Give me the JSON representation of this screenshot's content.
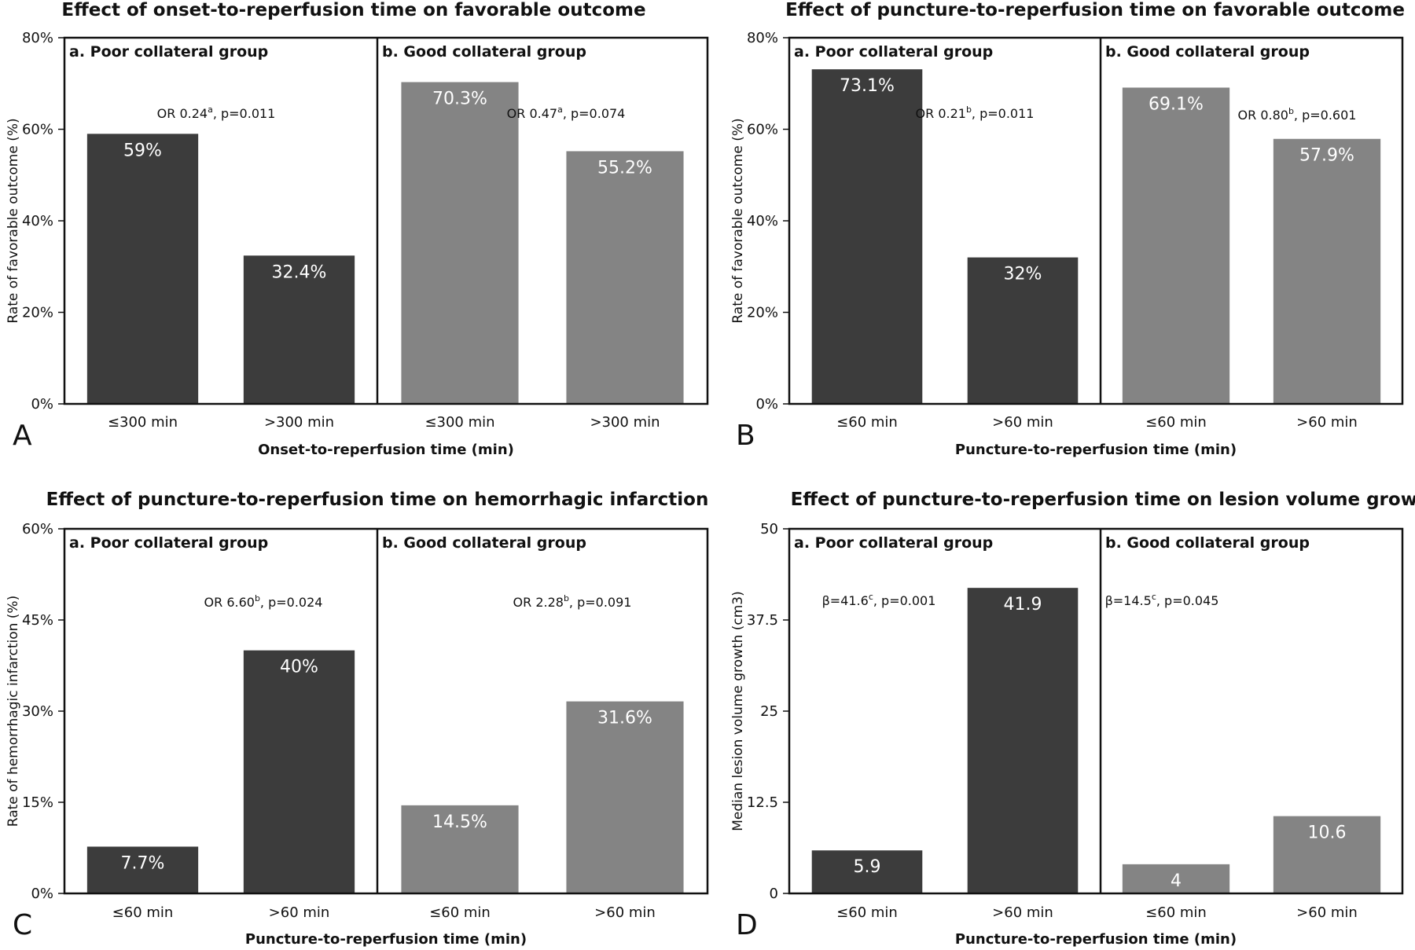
{
  "colors": {
    "poor": "#3c3c3c",
    "good": "#848484",
    "frame": "#111111"
  },
  "chart_data": [
    {
      "type": "bar",
      "panel_letter": "A",
      "title": "Effect of onset-to-reperfusion time on favorable outcome",
      "xlabel": "Onset-to-reperfusion time (min)",
      "ylabel": "Rate of favorable outcome (%)",
      "ylim": [
        0,
        80
      ],
      "yticks": [
        "0%",
        "20%",
        "40%",
        "60%",
        "80%"
      ],
      "groups": [
        {
          "name": "a. Poor collateral group",
          "color_key": "poor",
          "categories": [
            "≤300 min",
            ">300 min"
          ],
          "values": [
            59,
            32.4
          ],
          "labels": [
            "59%",
            "32.4%"
          ],
          "annotation": {
            "main": "OR 0.24",
            "sup": "a",
            "rest": ", p=0.011"
          }
        },
        {
          "name": "b. Good collateral group",
          "color_key": "good",
          "categories": [
            "≤300 min",
            ">300 min"
          ],
          "values": [
            70.3,
            55.2
          ],
          "labels": [
            "70.3%",
            "55.2%"
          ],
          "annotation": {
            "main": "OR 0.47",
            "sup": "a",
            "rest": ", p=0.074"
          }
        }
      ]
    },
    {
      "type": "bar",
      "panel_letter": "B",
      "title": "Effect of puncture-to-reperfusion time on favorable outcome",
      "xlabel": "Puncture-to-reperfusion time (min)",
      "ylabel": "Rate of favorable outcome (%)",
      "ylim": [
        0,
        80
      ],
      "yticks": [
        "0%",
        "20%",
        "40%",
        "60%",
        "80%"
      ],
      "groups": [
        {
          "name": "a. Poor collateral group",
          "color_key": "poor",
          "categories": [
            "≤60 min",
            ">60 min"
          ],
          "values": [
            73.1,
            32
          ],
          "labels": [
            "73.1%",
            "32%"
          ],
          "annotation": {
            "main": "OR 0.21",
            "sup": "b",
            "rest": ", p=0.011"
          }
        },
        {
          "name": "b. Good collateral group",
          "color_key": "good",
          "categories": [
            "≤60 min",
            ">60 min"
          ],
          "values": [
            69.1,
            57.9
          ],
          "labels": [
            "69.1%",
            "57.9%"
          ],
          "annotation": {
            "main": "OR 0.80",
            "sup": "b",
            "rest": ", p=0.601"
          }
        }
      ]
    },
    {
      "type": "bar",
      "panel_letter": "C",
      "title": "Effect of puncture-to-reperfusion time on hemorrhagic infarction",
      "xlabel": "Puncture-to-reperfusion time (min)",
      "ylabel": "Rate of hemorrhagic infarction (%)",
      "ylim": [
        0,
        60
      ],
      "yticks": [
        "0%",
        "15%",
        "30%",
        "45%",
        "60%"
      ],
      "groups": [
        {
          "name": "a. Poor collateral group",
          "color_key": "poor",
          "categories": [
            "≤60 min",
            ">60 min"
          ],
          "values": [
            7.7,
            40
          ],
          "labels": [
            "7.7%",
            "40%"
          ],
          "annotation": {
            "main": "OR 6.60",
            "sup": "b",
            "rest": ", p=0.024"
          }
        },
        {
          "name": "b. Good collateral group",
          "color_key": "good",
          "categories": [
            "≤60 min",
            ">60 min"
          ],
          "values": [
            14.5,
            31.6
          ],
          "labels": [
            "14.5%",
            "31.6%"
          ],
          "annotation": {
            "main": "OR 2.28",
            "sup": "b",
            "rest": ", p=0.091"
          }
        }
      ]
    },
    {
      "type": "bar",
      "panel_letter": "D",
      "title": "Effect of puncture-to-reperfusion time on lesion volume growth",
      "xlabel": "Puncture-to-reperfusion time (min)",
      "ylabel": "Median lesion volume growth (cm3)",
      "ylim": [
        0,
        50
      ],
      "yticks": [
        "0",
        "12.5",
        "25",
        "37.5",
        "50"
      ],
      "groups": [
        {
          "name": "a. Poor collateral group",
          "color_key": "poor",
          "categories": [
            "≤60 min",
            ">60 min"
          ],
          "values": [
            5.9,
            41.9
          ],
          "labels": [
            "5.9",
            "41.9"
          ],
          "annotation": {
            "main": "β=41.6",
            "sup": "c",
            "rest": ", p=0.001"
          }
        },
        {
          "name": "b. Good collateral group",
          "color_key": "good",
          "categories": [
            "≤60 min",
            ">60 min"
          ],
          "values": [
            4,
            10.6
          ],
          "labels": [
            "4",
            "10.6"
          ],
          "annotation": {
            "main": "β=14.5",
            "sup": "c",
            "rest": ", p=0.045"
          }
        }
      ]
    }
  ]
}
